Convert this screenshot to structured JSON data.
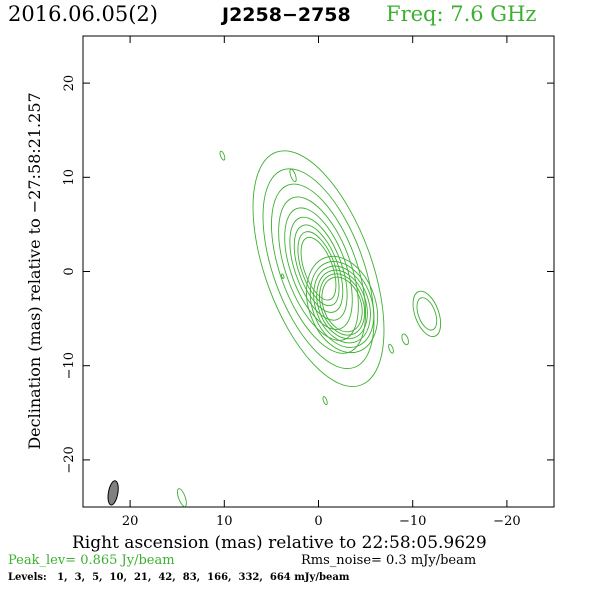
{
  "header": {
    "date": "2016.06.05(2)",
    "source": "J2258−2758",
    "frequency": "Freq: 7.6 GHz"
  },
  "footer": {
    "peak": "Peak_lev=  0.865 Jy/beam",
    "rms": "Rms_noise=  0.3 mJy/beam",
    "levels_label": "Levels:",
    "levels": [
      "1,",
      "3,",
      "5,",
      "10,",
      "21,",
      "42,",
      "83,",
      "166,",
      "332,",
      "664 mJy/beam"
    ]
  },
  "chart_data": {
    "type": "contour",
    "xlabel": "Right ascension (mas) relative to 22:58:05.9629",
    "ylabel": "Declination (mas) relative to −27:58:21.257",
    "xlim": [
      25,
      -25
    ],
    "ylim": [
      -25,
      25
    ],
    "x_ticks": [
      20,
      10,
      0,
      -10,
      -20
    ],
    "x_tick_labels": [
      "20",
      "10",
      "0",
      "−10",
      "−20"
    ],
    "y_ticks": [
      20,
      10,
      0,
      -10,
      -20
    ],
    "y_tick_labels": [
      "20",
      "10",
      "0",
      "−10",
      "−20"
    ],
    "contour_color": "#3cb030",
    "beam": {
      "x": 21.8,
      "y": -23.5,
      "major": 2.6,
      "minor": 1.0,
      "pa_deg": 10,
      "fill": "#808080"
    },
    "components": [
      {
        "name": "core",
        "x": 0.0,
        "y": 0.3,
        "sx": 1.5,
        "sy": 3.5,
        "rings": 9,
        "spread": 1.18
      },
      {
        "name": "jet-knot",
        "x": -2.5,
        "y": -3.5,
        "sx": 2.0,
        "sy": 3.0,
        "rings": 6,
        "spread": 1.12
      },
      {
        "name": "outer-knot",
        "x": -11.5,
        "y": -4.5,
        "sx": 0.9,
        "sy": 1.8,
        "rings": 2,
        "spread": 1.4
      },
      {
        "name": "blob-a",
        "x": -9.2,
        "y": -7.2,
        "sx": 0.3,
        "sy": 0.6,
        "rings": 1,
        "spread": 1.0
      },
      {
        "name": "blob-b",
        "x": -7.7,
        "y": -8.2,
        "sx": 0.2,
        "sy": 0.5,
        "rings": 1,
        "spread": 1.0
      },
      {
        "name": "blob-c",
        "x": 10.2,
        "y": 12.3,
        "sx": 0.2,
        "sy": 0.5,
        "rings": 1,
        "spread": 1.0
      },
      {
        "name": "blob-d",
        "x": 2.7,
        "y": 10.2,
        "sx": 0.25,
        "sy": 0.7,
        "rings": 1,
        "spread": 1.0
      },
      {
        "name": "blob-e",
        "x": 3.8,
        "y": -0.5,
        "sx": 0.1,
        "sy": 0.25,
        "rings": 1,
        "spread": 1.0
      },
      {
        "name": "blob-f",
        "x": -0.7,
        "y": -13.7,
        "sx": 0.18,
        "sy": 0.45,
        "rings": 1,
        "spread": 1.0
      },
      {
        "name": "blob-g",
        "x": 14.5,
        "y": -24.0,
        "sx": 0.35,
        "sy": 1.0,
        "rings": 1,
        "spread": 1.0
      }
    ]
  }
}
